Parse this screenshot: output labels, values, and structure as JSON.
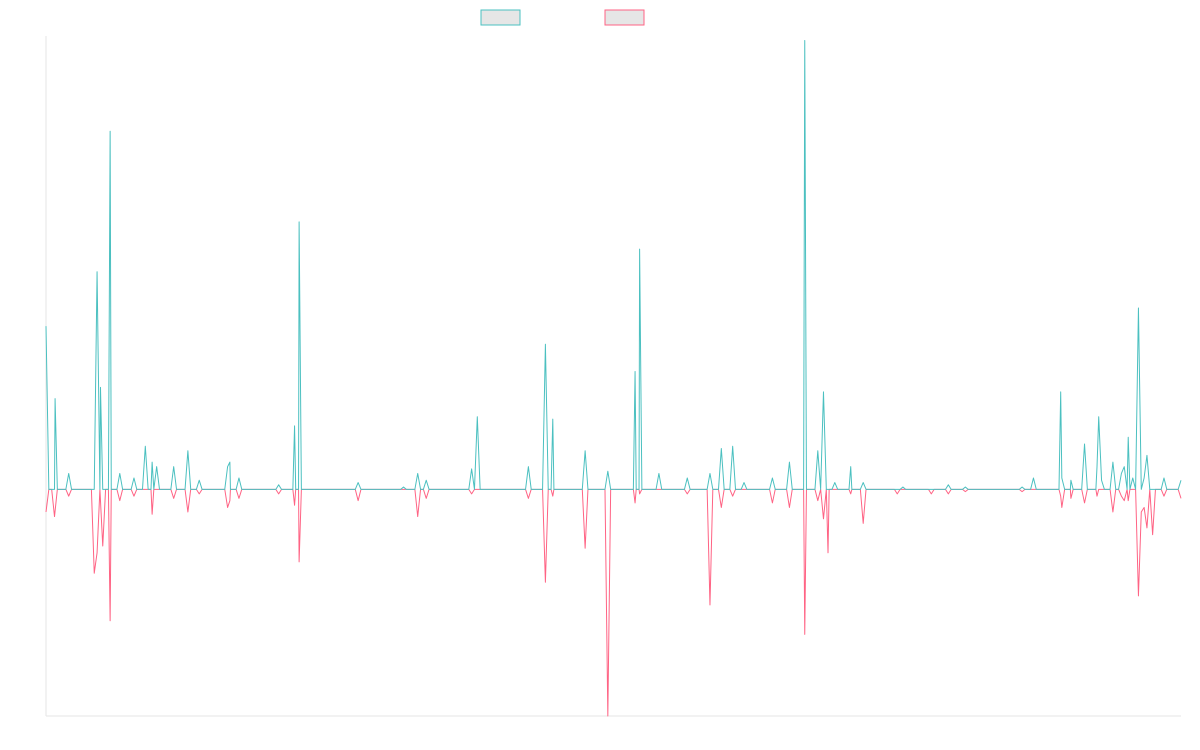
{
  "chart_data": {
    "type": "line",
    "title": "",
    "xlabel": "",
    "ylabel": "",
    "grid": false,
    "legend_position": "top-center",
    "ylim": [
      -100,
      200
    ],
    "x_count": 201,
    "series": [
      {
        "color": "#4bc0c0",
        "legend_fill": "#e6e6e6",
        "points": [
          [
            0,
            72
          ],
          [
            1.5,
            0
          ],
          [
            1.6,
            40
          ],
          [
            2,
            0
          ],
          [
            4,
            7
          ],
          [
            4.5,
            0
          ],
          [
            9,
            96
          ],
          [
            9.6,
            45
          ],
          [
            10,
            0
          ],
          [
            11.3,
            158
          ],
          [
            12,
            0
          ],
          [
            13,
            7
          ],
          [
            14,
            0
          ],
          [
            15.5,
            5
          ],
          [
            16,
            0
          ],
          [
            17.5,
            19
          ],
          [
            18,
            0
          ],
          [
            18.7,
            12
          ],
          [
            19,
            0
          ],
          [
            19.5,
            10
          ],
          [
            20,
            0
          ],
          [
            22.5,
            10
          ],
          [
            23,
            0
          ],
          [
            25,
            17
          ],
          [
            25.5,
            0
          ],
          [
            27,
            4
          ],
          [
            27.5,
            0
          ],
          [
            32,
            10
          ],
          [
            32.4,
            12
          ],
          [
            33,
            0
          ],
          [
            34,
            5
          ],
          [
            34.5,
            0
          ],
          [
            41,
            2
          ],
          [
            43.8,
            28
          ],
          [
            44.6,
            118
          ],
          [
            45,
            0
          ],
          [
            55,
            3
          ],
          [
            55.5,
            0
          ],
          [
            63,
            1
          ],
          [
            65.5,
            7
          ],
          [
            66,
            0
          ],
          [
            67,
            4
          ],
          [
            67.5,
            0
          ],
          [
            75,
            9
          ],
          [
            76,
            32
          ],
          [
            76.5,
            0
          ],
          [
            85,
            10
          ],
          [
            85.5,
            0
          ],
          [
            88,
            64
          ],
          [
            89.3,
            31
          ],
          [
            90,
            0
          ],
          [
            95,
            17
          ],
          [
            95.5,
            0
          ],
          [
            99,
            8
          ],
          [
            100,
            0
          ],
          [
            103,
            0
          ],
          [
            103.8,
            52
          ],
          [
            104.6,
            106
          ],
          [
            105,
            0
          ],
          [
            108,
            7
          ],
          [
            108.5,
            0
          ],
          [
            113,
            5
          ],
          [
            113.5,
            0
          ],
          [
            117,
            7
          ],
          [
            117.5,
            0
          ],
          [
            119,
            18
          ],
          [
            120,
            0
          ],
          [
            121,
            19
          ],
          [
            121.5,
            0
          ],
          [
            123,
            3
          ],
          [
            124,
            0
          ],
          [
            128,
            5
          ],
          [
            128.5,
            0
          ],
          [
            131,
            12
          ],
          [
            131.5,
            0
          ],
          [
            133.7,
            198
          ],
          [
            134,
            0
          ],
          [
            136,
            17
          ],
          [
            136.5,
            0
          ],
          [
            137,
            43
          ],
          [
            137.5,
            0
          ],
          [
            139,
            3
          ],
          [
            139.5,
            0
          ],
          [
            141.8,
            10
          ],
          [
            142,
            0
          ],
          [
            144,
            3
          ],
          [
            145,
            0
          ],
          [
            151,
            1
          ],
          [
            159,
            2
          ],
          [
            160,
            0
          ],
          [
            162,
            1
          ],
          [
            163,
            0
          ],
          [
            172,
            1
          ],
          [
            173,
            0
          ],
          [
            174,
            5
          ],
          [
            175,
            0
          ],
          [
            178.8,
            43
          ],
          [
            179,
            5
          ],
          [
            180,
            0
          ],
          [
            180.6,
            4
          ],
          [
            181,
            0
          ],
          [
            183,
            20
          ],
          [
            184,
            0
          ],
          [
            185.2,
            10
          ],
          [
            185.5,
            32
          ],
          [
            186,
            4
          ],
          [
            188,
            12
          ],
          [
            189.5,
            7
          ],
          [
            190,
            10
          ],
          [
            190.7,
            23
          ],
          [
            191.5,
            5
          ],
          [
            192.5,
            80
          ],
          [
            193,
            0
          ],
          [
            193.5,
            5
          ],
          [
            194,
            15
          ],
          [
            194.5,
            0
          ],
          [
            197,
            5
          ],
          [
            198,
            0
          ],
          [
            200,
            4
          ]
        ]
      },
      {
        "color": "#ff6384",
        "legend_fill": "#e6e6e6",
        "points": [
          [
            0,
            -10
          ],
          [
            1.5,
            -12
          ],
          [
            2,
            0
          ],
          [
            4,
            -3
          ],
          [
            4.5,
            0
          ],
          [
            8.5,
            -37
          ],
          [
            9,
            -28
          ],
          [
            10,
            -25
          ],
          [
            11.3,
            -58
          ],
          [
            12,
            0
          ],
          [
            13,
            -5
          ],
          [
            14,
            0
          ],
          [
            15.5,
            -3
          ],
          [
            16,
            0
          ],
          [
            18.7,
            -11
          ],
          [
            19,
            0
          ],
          [
            22.5,
            -4
          ],
          [
            23,
            0
          ],
          [
            25,
            -10
          ],
          [
            25.5,
            0
          ],
          [
            27,
            -2
          ],
          [
            27.5,
            0
          ],
          [
            32,
            -8
          ],
          [
            32.4,
            -5
          ],
          [
            33,
            0
          ],
          [
            34,
            -4
          ],
          [
            34.5,
            0
          ],
          [
            41,
            -2
          ],
          [
            43.8,
            -7
          ],
          [
            44.6,
            -32
          ],
          [
            45,
            0
          ],
          [
            55,
            -5
          ],
          [
            55.5,
            0
          ],
          [
            65.5,
            -12
          ],
          [
            66,
            0
          ],
          [
            67,
            -4
          ],
          [
            67.5,
            0
          ],
          [
            75,
            -2
          ],
          [
            76,
            0
          ],
          [
            85,
            -4
          ],
          [
            85.5,
            0
          ],
          [
            88,
            -41
          ],
          [
            89.3,
            -3
          ],
          [
            90,
            0
          ],
          [
            95,
            -26
          ],
          [
            95.5,
            0
          ],
          [
            99,
            -100
          ],
          [
            100,
            0
          ],
          [
            103.8,
            -6
          ],
          [
            104.6,
            -2
          ],
          [
            105,
            0
          ],
          [
            113,
            -2
          ],
          [
            117,
            -51
          ],
          [
            117.5,
            0
          ],
          [
            119,
            -8
          ],
          [
            120,
            0
          ],
          [
            121,
            -3
          ],
          [
            121.5,
            0
          ],
          [
            128,
            -6
          ],
          [
            128.5,
            0
          ],
          [
            131,
            -8
          ],
          [
            131.5,
            0
          ],
          [
            133.7,
            -64
          ],
          [
            134,
            0
          ],
          [
            136,
            -5
          ],
          [
            136.5,
            0
          ],
          [
            137,
            -13
          ],
          [
            137.5,
            0
          ],
          [
            137.8,
            -28
          ],
          [
            138,
            0
          ],
          [
            141.8,
            -2
          ],
          [
            142,
            0
          ],
          [
            144,
            -15
          ],
          [
            145,
            0
          ],
          [
            150,
            -2
          ],
          [
            151,
            0
          ],
          [
            156,
            -2
          ],
          [
            157,
            0
          ],
          [
            159,
            -2
          ],
          [
            160,
            0
          ],
          [
            162,
            -1
          ],
          [
            172,
            -1
          ],
          [
            173,
            0
          ],
          [
            178.8,
            -3
          ],
          [
            179,
            -8
          ],
          [
            180,
            0
          ],
          [
            180.6,
            -4
          ],
          [
            181,
            0
          ],
          [
            183,
            -6
          ],
          [
            184,
            0
          ],
          [
            185.2,
            -3
          ],
          [
            188,
            -10
          ],
          [
            189.5,
            -3
          ],
          [
            190,
            -5
          ],
          [
            190.7,
            -5
          ],
          [
            191.5,
            0
          ],
          [
            192.5,
            -47
          ],
          [
            193,
            -10
          ],
          [
            193.5,
            -8
          ],
          [
            194,
            -17
          ],
          [
            194.5,
            0
          ],
          [
            195,
            -20
          ],
          [
            196,
            0
          ],
          [
            197,
            -3
          ],
          [
            198,
            0
          ],
          [
            200,
            -4
          ]
        ]
      }
    ]
  }
}
